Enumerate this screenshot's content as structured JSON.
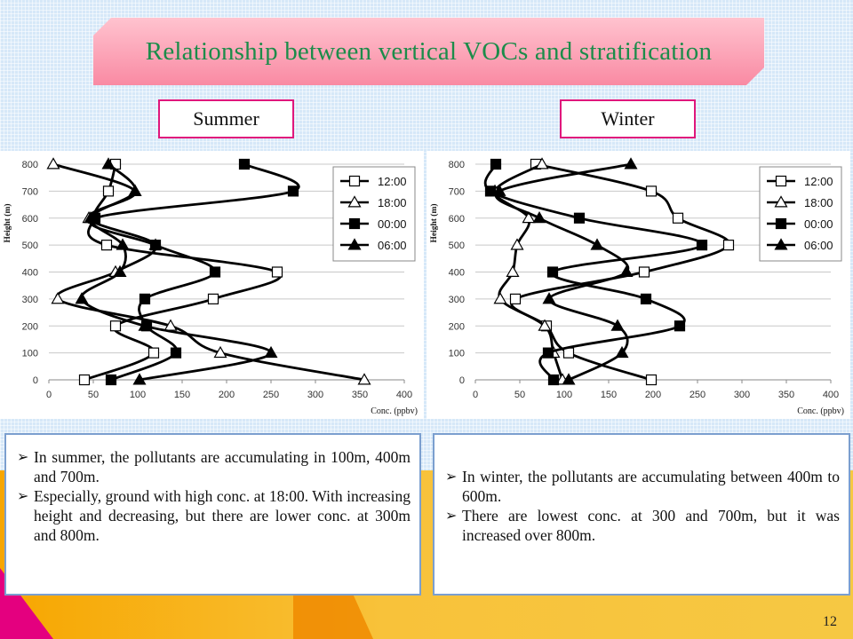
{
  "title": "Relationship between vertical VOCs and stratification",
  "seasons": {
    "summer": "Summer",
    "winter": "Winter"
  },
  "chart_data": [
    {
      "type": "line",
      "title": "",
      "xlabel": "Conc. (ppbv)",
      "ylabel": "Height (m)",
      "xlim": [
        0,
        400
      ],
      "ylim": [
        0,
        800
      ],
      "xticks": [
        0,
        50,
        100,
        150,
        200,
        250,
        300,
        350,
        400
      ],
      "yticks": [
        0,
        100,
        200,
        300,
        400,
        500,
        600,
        700,
        800
      ],
      "grid": "horizontal",
      "legend_position": "top-right",
      "y": [
        0,
        100,
        200,
        300,
        400,
        500,
        600,
        700,
        800
      ],
      "series": [
        {
          "name": "12:00",
          "marker": "square-open",
          "values": [
            40,
            118,
            75,
            185,
            257,
            65,
            50,
            67,
            75
          ]
        },
        {
          "name": "18:00",
          "marker": "triangle-open",
          "values": [
            355,
            193,
            137,
            10,
            75,
            120,
            45,
            97,
            5
          ]
        },
        {
          "name": "00:00",
          "marker": "square-filled",
          "values": [
            70,
            143,
            110,
            108,
            187,
            120,
            52,
            275,
            220
          ]
        },
        {
          "name": "06:00",
          "marker": "triangle-filled",
          "values": [
            102,
            250,
            108,
            37,
            80,
            83,
            47,
            97,
            67
          ]
        }
      ]
    },
    {
      "type": "line",
      "title": "",
      "xlabel": "Conc. (ppbv)",
      "ylabel": "Height (m)",
      "xlim": [
        0,
        400
      ],
      "ylim": [
        0,
        800
      ],
      "xticks": [
        0,
        50,
        100,
        150,
        200,
        250,
        300,
        350,
        400
      ],
      "yticks": [
        0,
        100,
        200,
        300,
        400,
        500,
        600,
        700,
        800
      ],
      "grid": "horizontal",
      "legend_position": "top-right",
      "y": [
        0,
        100,
        200,
        300,
        400,
        500,
        600,
        700,
        800
      ],
      "series": [
        {
          "name": "12:00",
          "marker": "square-open",
          "values": [
            198,
            105,
            80,
            45,
            190,
            285,
            228,
            198,
            68
          ]
        },
        {
          "name": "18:00",
          "marker": "triangle-open",
          "values": [
            98,
            88,
            78,
            28,
            42,
            47,
            60,
            22,
            75
          ]
        },
        {
          "name": "00:00",
          "marker": "square-filled",
          "values": [
            88,
            82,
            230,
            192,
            87,
            255,
            117,
            17,
            23
          ]
        },
        {
          "name": "06:00",
          "marker": "triangle-filled",
          "values": [
            105,
            165,
            160,
            83,
            170,
            137,
            72,
            27,
            175
          ]
        }
      ]
    }
  ],
  "notes": {
    "summer": [
      "In summer, the pollutants are accumulating in 100m, 400m and 700m.",
      "Especially, ground with high conc. at 18:00. With increasing height and decreasing, but there are lower conc. at 300m and 800m."
    ],
    "winter": [
      "In winter, the pollutants are accumulating between 400m to 600m.",
      "There are lowest conc. at 300 and 700m, but it was increased over 800m."
    ]
  },
  "page_number": "12"
}
